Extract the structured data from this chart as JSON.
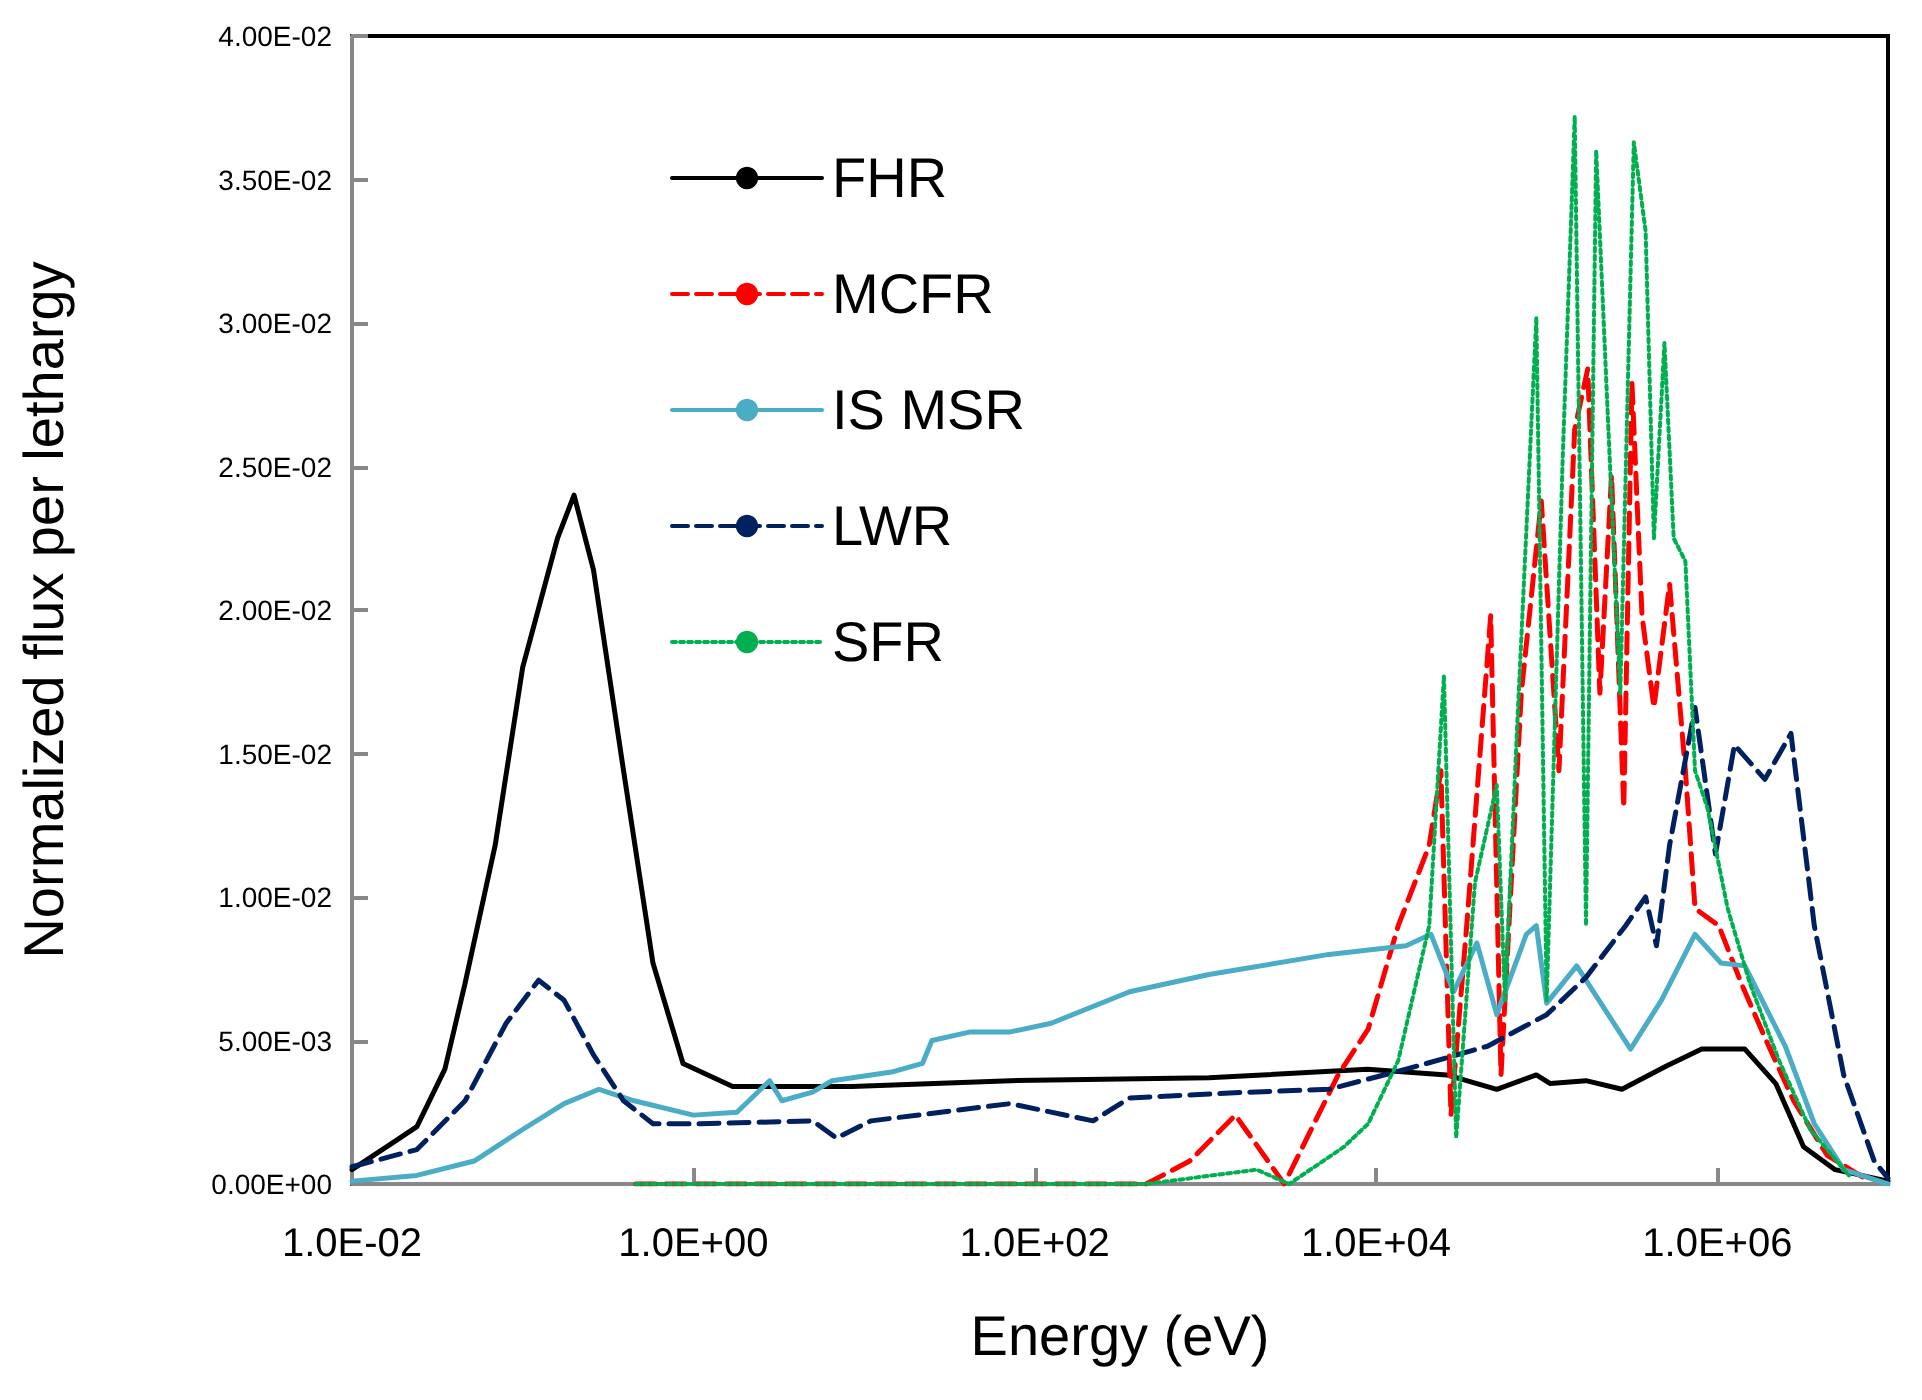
{
  "chart_data": {
    "type": "line",
    "xlabel": "Energy (eV)",
    "ylabel": "Normalized flux per lethargy",
    "log": "x",
    "grid": false,
    "legend": "top left",
    "marker": "none",
    "xlim": [
      0.01,
      10000000
    ],
    "xticks": [
      {
        "value": 0.01,
        "label": "1.0E-02"
      },
      {
        "value": 1,
        "label": "1.0E+00"
      },
      {
        "value": 100,
        "label": "1.0E+02"
      },
      {
        "value": 10000,
        "label": "1.0E+04"
      },
      {
        "value": 1000000,
        "label": "1.0E+06"
      }
    ],
    "ylim": [
      0,
      0.04
    ],
    "yticks": [
      {
        "value": 0,
        "label": "0.00E+00"
      },
      {
        "value": 0.005,
        "label": "5.00E-03"
      },
      {
        "value": 0.01,
        "label": "1.00E-02"
      },
      {
        "value": 0.015,
        "label": "1.50E-02"
      },
      {
        "value": 0.02,
        "label": "2.00E-02"
      },
      {
        "value": 0.025,
        "label": "2.50E-02"
      },
      {
        "value": 0.03,
        "label": "3.00E-02"
      },
      {
        "value": 0.035,
        "label": "3.50E-02"
      },
      {
        "value": 0.04,
        "label": "4.00E-02"
      }
    ],
    "series": [
      {
        "name": "FHR",
        "color": "#000000",
        "line_style": "solid",
        "x": [
          0.01,
          0.018,
          0.024,
          0.035,
          0.046,
          0.069,
          0.1,
          0.16,
          0.2,
          0.26,
          0.39,
          0.58,
          0.87,
          1.7,
          8.5,
          72,
          1050,
          8900,
          26000,
          51000,
          87000,
          105000,
          170000,
          276000,
          500000,
          810000,
          1450000,
          2200000,
          3200000,
          4900000,
          10000000
        ],
        "values": [
          0.0005,
          0.0015,
          0.002,
          0.004,
          0.007,
          0.0118,
          0.018,
          0.0225,
          0.024,
          0.0214,
          0.0144,
          0.0077,
          0.0042,
          0.0034,
          0.0034,
          0.0036,
          0.0037,
          0.004,
          0.0038,
          0.0033,
          0.0038,
          0.0035,
          0.0036,
          0.0033,
          0.0041,
          0.0047,
          0.0047,
          0.0035,
          0.0013,
          0.0005,
          0.0001
        ]
      },
      {
        "name": "MCFR",
        "color": "#ff0000",
        "line_style": "dashed",
        "x": [
          0.46,
          450,
          810,
          1500,
          2900,
          6000,
          9000,
          13500,
          20500,
          24000,
          27500,
          34000,
          47000,
          54000,
          71000,
          93000,
          118000,
          146000,
          174000,
          205000,
          240000,
          283000,
          316000,
          362000,
          425000,
          525000,
          650000,
          740000,
          1020000,
          1380000,
          1900000,
          2800000,
          4400000,
          7300000
        ],
        "values": [
          0,
          0,
          0.0008,
          0.0024,
          0,
          0.0038,
          0.0054,
          0.009,
          0.0118,
          0.0144,
          0.0024,
          0.009,
          0.0198,
          0.0038,
          0.0171,
          0.0238,
          0.0144,
          0.0263,
          0.0284,
          0.0171,
          0.0247,
          0.0131,
          0.0279,
          0.0198,
          0.0166,
          0.0209,
          0.0144,
          0.0096,
          0.009,
          0.007,
          0.0051,
          0.0029,
          0.001,
          0.0002
        ]
      },
      {
        "name": "IS MSR",
        "color": "#4bacc6",
        "line_style": "solid",
        "x": [
          0.01,
          0.024,
          0.052,
          0.1,
          0.175,
          0.28,
          0.45,
          1,
          1.8,
          2.8,
          3.3,
          5,
          6.5,
          14.5,
          22,
          25,
          42,
          72,
          125,
          360,
          1050,
          5300,
          15000,
          21000,
          28500,
          39000,
          51000,
          76000,
          87000,
          100000,
          150000,
          310000,
          470000,
          740000,
          1050000,
          1450000,
          2500000,
          3700000,
          5500000,
          10000000
        ],
        "values": [
          0.0001,
          0.0003,
          0.0008,
          0.0019,
          0.0028,
          0.0033,
          0.0029,
          0.0024,
          0.0025,
          0.0036,
          0.0029,
          0.0032,
          0.0036,
          0.0039,
          0.0042,
          0.005,
          0.0053,
          0.0053,
          0.0056,
          0.0067,
          0.0073,
          0.008,
          0.0083,
          0.0087,
          0.0067,
          0.0084,
          0.0059,
          0.0087,
          0.009,
          0.0063,
          0.0076,
          0.0047,
          0.0064,
          0.0087,
          0.0077,
          0.0076,
          0.0048,
          0.0021,
          0.0005,
          0
        ]
      },
      {
        "name": "LWR",
        "color": "#002060",
        "line_style": "dashed",
        "x": [
          0.01,
          0.024,
          0.046,
          0.08,
          0.124,
          0.175,
          0.26,
          0.39,
          0.58,
          1.1,
          5,
          6.9,
          11,
          72,
          220,
          360,
          1800,
          5300,
          15000,
          45000,
          100000,
          170000,
          290000,
          380000,
          440000,
          525000,
          740000,
          975000,
          1260000,
          1900000,
          2700000,
          3700000,
          5500000,
          8300000,
          10000000
        ],
        "values": [
          0.0006,
          0.0012,
          0.0029,
          0.0056,
          0.0071,
          0.0064,
          0.0045,
          0.0029,
          0.0021,
          0.0021,
          0.0022,
          0.0016,
          0.0022,
          0.0028,
          0.0022,
          0.003,
          0.0032,
          0.0033,
          0.004,
          0.0048,
          0.0059,
          0.0072,
          0.009,
          0.01,
          0.0083,
          0.0118,
          0.0166,
          0.0115,
          0.0153,
          0.0141,
          0.0157,
          0.009,
          0.0038,
          0.0008,
          0.0002
        ]
      },
      {
        "name": "SFR",
        "color": "#00b050",
        "line_style": "dotted",
        "x": [
          0.46,
          450,
          2000,
          3100,
          6500,
          9000,
          13500,
          20500,
          25000,
          29500,
          38000,
          51000,
          57000,
          67000,
          87000,
          100000,
          124000,
          146000,
          170000,
          195000,
          230000,
          270000,
          324000,
          380000,
          425000,
          490000,
          555000,
          650000,
          740000,
          875000,
          1150000,
          1550000,
          2300000,
          3500000,
          5900000
        ],
        "values": [
          0,
          0,
          0.0005,
          0,
          0.0013,
          0.0021,
          0.0043,
          0.009,
          0.0177,
          0.0016,
          0.0105,
          0.0139,
          0.0064,
          0.0158,
          0.0302,
          0.0064,
          0.0252,
          0.0372,
          0.009,
          0.036,
          0.0263,
          0.0171,
          0.0363,
          0.0332,
          0.0225,
          0.0293,
          0.0225,
          0.0217,
          0.0144,
          0.0131,
          0.0096,
          0.007,
          0.0043,
          0.0019,
          0.0003
        ]
      }
    ]
  }
}
